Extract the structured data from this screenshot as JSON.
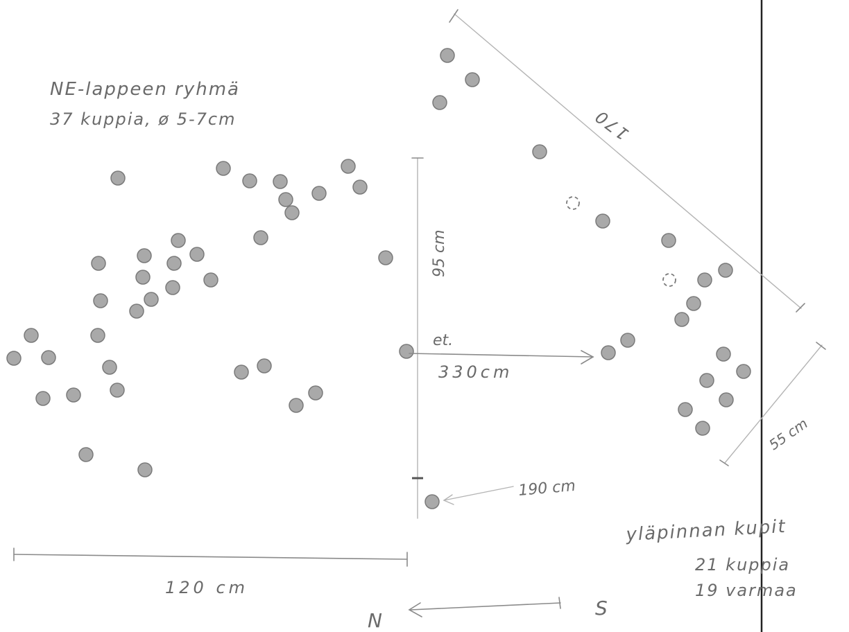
{
  "annotations": {
    "group_title_line1": "NE-lappeen ryhmä",
    "group_title_line2": "37 kuppia, ø 5-7cm",
    "dim_120": "120 cm",
    "dim_95": "95 cm",
    "dim_330_prefix": "et.",
    "dim_330": "330cm",
    "dim_190": "190 cm",
    "dim_170": "170",
    "dim_55": "55 cm",
    "top_label_line1": "yläpinnan kupit",
    "top_label_line2": "21 kuppia",
    "top_label_line3": "19 varmaa",
    "north": "N",
    "south": "S"
  },
  "colors": {
    "ink": "#6a6a6a",
    "cup_fill": "#a9a9a9",
    "cup_edge": "#7a7a7a",
    "border_line": "#222222"
  }
}
